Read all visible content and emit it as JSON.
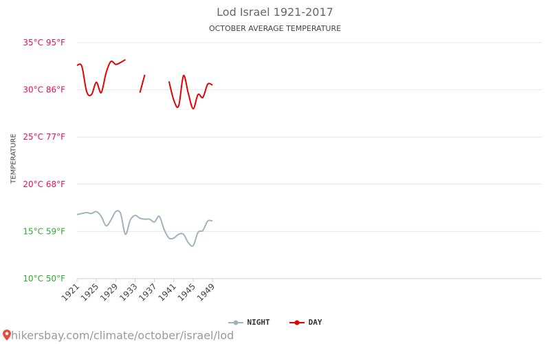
{
  "title": "Lod Israel 1921-2017",
  "subtitle": "OCTOBER AVERAGE TEMPERATURE",
  "ylabel": "TEMPERATURE",
  "watermark": "hikersbay.com/climate/october/israel/lod",
  "colors": {
    "day": "#e00000",
    "night": "#9db3bd",
    "grid": "#e6e6e6",
    "pin": "#e74c3c"
  },
  "chart_data": {
    "type": "line",
    "title": "Lod Israel 1921-2017",
    "subtitle": "OCTOBER AVERAGE TEMPERATURE",
    "ylabel": "TEMPERATURE",
    "ylim": [
      10,
      35
    ],
    "yticks": [
      {
        "value": 35,
        "label": "35°C 95°F",
        "color": "#e0105a"
      },
      {
        "value": 30,
        "label": "30°C 86°F",
        "color": "#e0105a"
      },
      {
        "value": 25,
        "label": "25°C 77°F",
        "color": "#e0105a"
      },
      {
        "value": 20,
        "label": "20°C 68°F",
        "color": "#e0105a"
      },
      {
        "value": 15,
        "label": "15°C 59°F",
        "color": "#2eaa2e"
      },
      {
        "value": 10,
        "label": "10°C 50°F",
        "color": "#2eaa2e"
      }
    ],
    "xticks": [
      1921,
      1925,
      1929,
      1933,
      1937,
      1941,
      1945,
      1949
    ],
    "grid": true,
    "legend": "bottom-center",
    "series": [
      {
        "name": "DAY",
        "color": "#e00000",
        "x": [
          1921,
          1922,
          1923,
          1924,
          1925,
          1926,
          1927,
          1928,
          1929,
          1930,
          1931,
          null,
          1934,
          1935,
          null,
          1940,
          1941,
          1942,
          1943,
          1944,
          1945,
          1946,
          1947,
          1948,
          1949
        ],
        "y": [
          32.6,
          32.5,
          29.8,
          29.5,
          30.8,
          29.7,
          31.8,
          33.0,
          32.7,
          32.9,
          33.2,
          null,
          29.7,
          31.6,
          null,
          30.9,
          28.9,
          28.3,
          31.5,
          29.6,
          28.0,
          29.5,
          29.2,
          30.6,
          30.5
        ]
      },
      {
        "name": "NIGHT",
        "color": "#9db3bd",
        "x": [
          1921,
          1922,
          1923,
          1924,
          1925,
          1926,
          1927,
          1928,
          1929,
          1930,
          1931,
          1932,
          1933,
          1934,
          1935,
          1936,
          1937,
          1938,
          1939,
          1940,
          1941,
          1942,
          1943,
          1944,
          1945,
          1946,
          1947,
          1948,
          1949
        ],
        "y": [
          16.8,
          16.9,
          17.0,
          16.9,
          17.1,
          16.6,
          15.6,
          16.2,
          17.1,
          16.9,
          14.7,
          16.2,
          16.7,
          16.4,
          16.3,
          16.3,
          16.0,
          16.6,
          15.2,
          14.3,
          14.3,
          14.7,
          14.7,
          13.8,
          13.5,
          14.9,
          15.1,
          16.1,
          16.1
        ]
      }
    ]
  }
}
